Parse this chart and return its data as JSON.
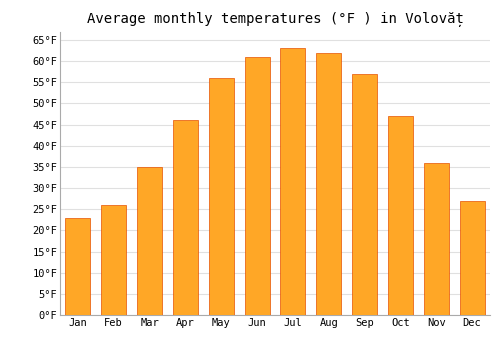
{
  "title": "Average monthly temperatures (°F ) in Volovăț",
  "months": [
    "Jan",
    "Feb",
    "Mar",
    "Apr",
    "May",
    "Jun",
    "Jul",
    "Aug",
    "Sep",
    "Oct",
    "Nov",
    "Dec"
  ],
  "values": [
    23,
    26,
    35,
    46,
    56,
    61,
    63,
    62,
    57,
    47,
    36,
    27
  ],
  "bar_color": "#FFA726",
  "bar_edge_color": "#E65100",
  "ylim": [
    0,
    67
  ],
  "yticks": [
    0,
    5,
    10,
    15,
    20,
    25,
    30,
    35,
    40,
    45,
    50,
    55,
    60,
    65
  ],
  "ytick_labels": [
    "0°F",
    "5°F",
    "10°F",
    "15°F",
    "20°F",
    "25°F",
    "30°F",
    "35°F",
    "40°F",
    "45°F",
    "50°F",
    "55°F",
    "60°F",
    "65°F"
  ],
  "background_color": "#ffffff",
  "grid_color": "#e0e0e0",
  "title_fontsize": 10,
  "tick_fontsize": 7.5,
  "bar_width": 0.7
}
